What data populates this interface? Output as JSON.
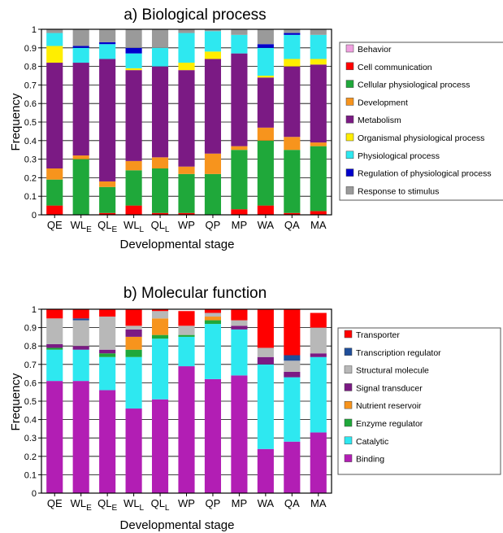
{
  "chart_data": [
    {
      "type": "bar",
      "stacked": true,
      "title": "a) Biological process",
      "xlabel": "Developmental stage",
      "ylabel": "Frequency",
      "ylim": [
        0,
        1
      ],
      "yticks": [
        "0",
        "0.1",
        "0.2",
        "0.3",
        "0.4",
        "0.5",
        "0.6",
        "0.7",
        "0.8",
        "0.9",
        "1"
      ],
      "categories": [
        {
          "base": "QE",
          "sub": ""
        },
        {
          "base": "WL",
          "sub": "E"
        },
        {
          "base": "QL",
          "sub": "E"
        },
        {
          "base": "WL",
          "sub": "L"
        },
        {
          "base": "QL",
          "sub": "L"
        },
        {
          "base": "WP",
          "sub": ""
        },
        {
          "base": "QP",
          "sub": ""
        },
        {
          "base": "MP",
          "sub": ""
        },
        {
          "base": "WA",
          "sub": ""
        },
        {
          "base": "QA",
          "sub": ""
        },
        {
          "base": "MA",
          "sub": ""
        }
      ],
      "legend_position": "right",
      "series": [
        {
          "name": "Cell communication",
          "color": "#ff0000",
          "values": [
            0.05,
            0.0,
            0.01,
            0.05,
            0.01,
            0.01,
            0.0,
            0.03,
            0.05,
            0.01,
            0.02
          ]
        },
        {
          "name": "Cellular physiological process",
          "color": "#1fa83a",
          "values": [
            0.14,
            0.3,
            0.14,
            0.19,
            0.24,
            0.21,
            0.22,
            0.32,
            0.35,
            0.34,
            0.35
          ]
        },
        {
          "name": "Development",
          "color": "#f7941d",
          "values": [
            0.06,
            0.02,
            0.03,
            0.05,
            0.06,
            0.04,
            0.11,
            0.02,
            0.07,
            0.07,
            0.02
          ]
        },
        {
          "name": "Metabolism",
          "color": "#7b1a84",
          "values": [
            0.57,
            0.5,
            0.66,
            0.49,
            0.49,
            0.52,
            0.51,
            0.5,
            0.27,
            0.38,
            0.42
          ]
        },
        {
          "name": "Organismal physiological process",
          "color": "#ffee00",
          "values": [
            0.09,
            0.0,
            0.0,
            0.01,
            0.0,
            0.04,
            0.04,
            0.0,
            0.01,
            0.04,
            0.03
          ]
        },
        {
          "name": "Physiological process",
          "color": "#2ee8f0",
          "values": [
            0.07,
            0.08,
            0.08,
            0.08,
            0.1,
            0.16,
            0.11,
            0.1,
            0.15,
            0.13,
            0.13
          ]
        },
        {
          "name": "Regulation of physiological process",
          "color": "#0000cc",
          "values": [
            0.0,
            0.01,
            0.01,
            0.03,
            0.0,
            0.0,
            0.0,
            0.0,
            0.02,
            0.01,
            0.0
          ]
        },
        {
          "name": "Response to stimulus",
          "color": "#9a9a9a",
          "values": [
            0.02,
            0.09,
            0.07,
            0.1,
            0.1,
            0.02,
            0.01,
            0.03,
            0.08,
            0.02,
            0.03
          ]
        },
        {
          "name": "Behavior",
          "color": "#f0a0e0",
          "values": [
            0,
            0,
            0,
            0,
            0,
            0,
            0,
            0,
            0,
            0,
            0
          ]
        }
      ],
      "legend_order": [
        "Behavior",
        "Cell communication",
        "Cellular physiological process",
        "Development",
        "Metabolism",
        "Organismal physiological process",
        "Physiological process",
        "Regulation of physiological process",
        "Response to stimulus"
      ]
    },
    {
      "type": "bar",
      "stacked": true,
      "title": "b) Molecular function",
      "xlabel": "Developmental stage",
      "ylabel": "Frequency",
      "ylim": [
        0,
        1
      ],
      "yticks": [
        "0",
        "0.1",
        "0.2",
        "0.3",
        "0.4",
        "0.5",
        "0.6",
        "0.7",
        "0.8",
        "0.9",
        "1"
      ],
      "categories": [
        {
          "base": "QE",
          "sub": ""
        },
        {
          "base": "WL",
          "sub": "E"
        },
        {
          "base": "QL",
          "sub": "E"
        },
        {
          "base": "WL",
          "sub": "L"
        },
        {
          "base": "QL",
          "sub": "L"
        },
        {
          "base": "WP",
          "sub": ""
        },
        {
          "base": "QP",
          "sub": ""
        },
        {
          "base": "MP",
          "sub": ""
        },
        {
          "base": "WA",
          "sub": ""
        },
        {
          "base": "QA",
          "sub": ""
        },
        {
          "base": "MA",
          "sub": ""
        }
      ],
      "legend_position": "right",
      "series": [
        {
          "name": "Binding",
          "color": "#b21eb4",
          "values": [
            0.61,
            0.61,
            0.56,
            0.46,
            0.51,
            0.69,
            0.62,
            0.64,
            0.24,
            0.28,
            0.33
          ]
        },
        {
          "name": "Catalytic",
          "color": "#2ee8f0",
          "values": [
            0.17,
            0.17,
            0.18,
            0.28,
            0.33,
            0.16,
            0.3,
            0.25,
            0.46,
            0.35,
            0.41
          ]
        },
        {
          "name": "Enzyme regulator",
          "color": "#1fa83a",
          "values": [
            0.01,
            0.0,
            0.02,
            0.04,
            0.02,
            0.01,
            0.02,
            0.0,
            0.0,
            0.0,
            0.0
          ]
        },
        {
          "name": "Nutrient reservoir",
          "color": "#f7941d",
          "values": [
            0.0,
            0.0,
            0.0,
            0.07,
            0.09,
            0.0,
            0.02,
            0.0,
            0.0,
            0.0,
            0.0
          ]
        },
        {
          "name": "Signal transducer",
          "color": "#7b1a84",
          "values": [
            0.02,
            0.02,
            0.02,
            0.04,
            0.0,
            0.0,
            0.0,
            0.02,
            0.04,
            0.03,
            0.02
          ]
        },
        {
          "name": "Structural molecule",
          "color": "#b8b8b8",
          "values": [
            0.14,
            0.14,
            0.18,
            0.02,
            0.04,
            0.05,
            0.02,
            0.03,
            0.05,
            0.06,
            0.14
          ]
        },
        {
          "name": "Transcription regulator",
          "color": "#1f4e9a",
          "values": [
            0.0,
            0.01,
            0.0,
            0.0,
            0.0,
            0.0,
            0.0,
            0.0,
            0.0,
            0.03,
            0.0
          ]
        },
        {
          "name": "Transporter",
          "color": "#ff0000",
          "values": [
            0.05,
            0.05,
            0.04,
            0.09,
            0.01,
            0.08,
            0.02,
            0.06,
            0.21,
            0.25,
            0.08
          ]
        }
      ],
      "legend_order": [
        "Transporter",
        "Transcription regulator",
        "Structural molecule",
        "Signal transducer",
        "Nutrient reservoir",
        "Enzyme regulator",
        "Catalytic",
        "Binding"
      ]
    }
  ]
}
